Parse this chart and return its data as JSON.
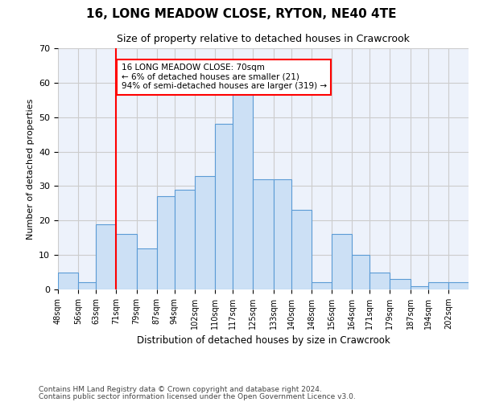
{
  "title": "16, LONG MEADOW CLOSE, RYTON, NE40 4TE",
  "subtitle": "Size of property relative to detached houses in Crawcrook",
  "xlabel": "Distribution of detached houses by size in Crawcrook",
  "ylabel": "Number of detached properties",
  "bins": [
    48,
    56,
    63,
    71,
    79,
    87,
    94,
    102,
    110,
    117,
    125,
    133,
    140,
    148,
    156,
    164,
    171,
    179,
    187,
    194,
    202
  ],
  "values": [
    5,
    2,
    19,
    16,
    12,
    27,
    29,
    33,
    48,
    57,
    32,
    32,
    23,
    2,
    16,
    10,
    5,
    3,
    1,
    2,
    2
  ],
  "bar_color": "#cce0f5",
  "bar_edge_color": "#5b9bd5",
  "red_line_x": 71,
  "annotation_lines": [
    "16 LONG MEADOW CLOSE: 70sqm",
    "← 6% of detached houses are smaller (21)",
    "94% of semi-detached houses are larger (319) →"
  ],
  "annotation_box_color": "white",
  "annotation_box_edge_color": "red",
  "red_line_color": "red",
  "ylim": [
    0,
    70
  ],
  "yticks": [
    0,
    10,
    20,
    30,
    40,
    50,
    60,
    70
  ],
  "grid_color": "#cccccc",
  "background_color": "#edf2fb",
  "footer_line1": "Contains HM Land Registry data © Crown copyright and database right 2024.",
  "footer_line2": "Contains public sector information licensed under the Open Government Licence v3.0."
}
